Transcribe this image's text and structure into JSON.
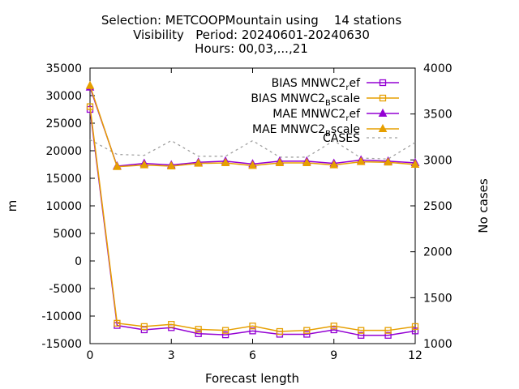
{
  "chart_data": {
    "type": "line",
    "title_lines": [
      "Selection: METCOOPMountain using    14 stations",
      "Visibility   Period: 20240601-20240630",
      "Hours: 00,03,...,21"
    ],
    "xlabel": "Forecast length",
    "ylabel": "m",
    "y2label": "No cases",
    "xlim": [
      0,
      12
    ],
    "ylim": [
      -15000,
      35000
    ],
    "y2lim": [
      1000,
      4000
    ],
    "xticks": [
      "0",
      "3",
      "6",
      "9",
      "12"
    ],
    "yticks": [
      "-15000",
      "-10000",
      "-5000",
      "0",
      "5000",
      "10000",
      "15000",
      "20000",
      "25000",
      "30000",
      "35000"
    ],
    "y2ticks": [
      "1000",
      "1500",
      "2000",
      "2500",
      "3000",
      "3500",
      "4000"
    ],
    "grid": false,
    "legend_position": "top-right",
    "x": [
      0,
      1,
      2,
      3,
      4,
      5,
      6,
      7,
      8,
      9,
      10,
      11,
      12
    ],
    "series": [
      {
        "name": "BIAS MNWC2",
        "name_sub": "r",
        "name_tail": "ef",
        "color": "#9400d3",
        "marker": "square",
        "axis": "y1",
        "values": [
          27500,
          -11700,
          -12500,
          -12100,
          -13200,
          -13400,
          -12700,
          -13300,
          -13300,
          -12500,
          -13500,
          -13500,
          -12700
        ]
      },
      {
        "name": "BIAS MNWC2",
        "name_sub": "B",
        "name_tail": "scale",
        "color": "#e69f00",
        "marker": "square",
        "axis": "y1",
        "values": [
          28000,
          -11300,
          -11900,
          -11500,
          -12400,
          -12600,
          -11800,
          -12800,
          -12600,
          -11800,
          -12600,
          -12600,
          -11900
        ]
      },
      {
        "name": "MAE MNWC2",
        "name_sub": "r",
        "name_tail": "ef",
        "color": "#9400d3",
        "marker": "triangle",
        "axis": "y1",
        "values": [
          31500,
          17200,
          17700,
          17400,
          17900,
          18100,
          17600,
          18100,
          18100,
          17700,
          18300,
          18100,
          17800
        ]
      },
      {
        "name": "MAE MNWC2",
        "name_sub": "B",
        "name_tail": "scale",
        "color": "#e69f00",
        "marker": "triangle",
        "axis": "y1",
        "values": [
          31800,
          17100,
          17400,
          17200,
          17700,
          17800,
          17300,
          17800,
          17800,
          17400,
          18000,
          17900,
          17500
        ]
      },
      {
        "name": "CASES",
        "color": "#a0a0a0",
        "marker": "none",
        "dashed": true,
        "axis": "y2",
        "values": [
          3220,
          3060,
          3050,
          3210,
          3040,
          3040,
          3210,
          3030,
          3030,
          3210,
          3020,
          3010,
          3190
        ]
      }
    ]
  }
}
